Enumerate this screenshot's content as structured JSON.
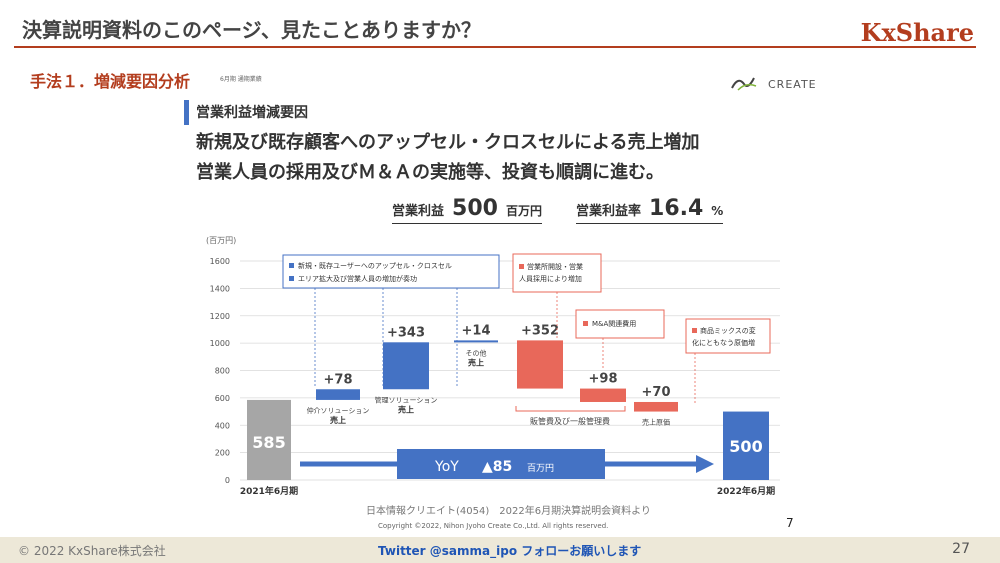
{
  "slide": {
    "title": "決算説明資料のこのページ、見たことありますか？",
    "brand": "KxShare",
    "section": "手法１．増減要因分析",
    "section_small": "6月期 通期業績",
    "logo_text": "CREATE"
  },
  "content": {
    "subheading": "営業利益増減要因",
    "headline1": "新規及び既存顧客へのアップセル・クロスセルによる売上増加",
    "headline2": "営業人員の採用及びＭ＆Ａの実施等、投資も順調に進む。",
    "kpi_op_label": "営業利益",
    "kpi_op_value": "500",
    "kpi_op_unit": "百万円",
    "kpi_margin_label": "営業利益率",
    "kpi_margin_value": "16.4",
    "kpi_margin_unit": "%"
  },
  "chart_data": {
    "type": "bar",
    "subtype": "waterfall",
    "unit_label": "(百万円)",
    "ylim": [
      0,
      1600
    ],
    "yticks": [
      0,
      200,
      400,
      600,
      800,
      1000,
      1200,
      1400,
      1600
    ],
    "start": {
      "label": "2021年6月期",
      "value": 585,
      "color": "#a6a6a6"
    },
    "end": {
      "label": "2022年6月期",
      "value": 500,
      "color": "#4472c4"
    },
    "steps": [
      {
        "label1": "仲介ソリューション",
        "label2": "売上",
        "delta": "+78",
        "value": 78,
        "color": "#4472c4"
      },
      {
        "label1": "管理ソリューション",
        "label2": "売上",
        "delta": "+343",
        "value": 343,
        "color": "#4472c4"
      },
      {
        "label1": "その他",
        "label2": "売上",
        "delta": "+14",
        "value": 14,
        "color": "#4472c4"
      },
      {
        "label1": "",
        "label2": "",
        "delta": "+352",
        "value": -352,
        "color": "#e8685a"
      },
      {
        "label1": "",
        "label2": "",
        "delta": "+98",
        "value": -98,
        "color": "#e8685a"
      },
      {
        "label1": "売上原価",
        "label2": "",
        "delta": "+70",
        "value": -70,
        "color": "#e8685a"
      }
    ],
    "group_label_sga": "販管費及び一般管理費",
    "yoy_label": "YoY",
    "yoy_value": "▲85",
    "yoy_unit": "百万円",
    "annotations": {
      "blue_box_line1": "新規・既存ユーザーへのアップセル・クロスセル",
      "blue_box_line2": "エリア拡大及び営業人員の増加が奏功",
      "red_box1_line1": "営業所開設・営業",
      "red_box1_line2": "人員採用により増加",
      "red_box2": "M&A関連費用",
      "red_box3_line1": "商品ミックスの変",
      "red_box3_line2": "化にともなう原価増"
    },
    "colors": {
      "blue": "#4472c4",
      "red": "#e8685a",
      "grey": "#a6a6a6"
    }
  },
  "footer": {
    "source": "日本情報クリエイト(4054)　2022年6月期決算説明会資料より",
    "copyright": "Copyright ©2022, Nihon Jyoho Create Co.,Ltd. All rights reserved.",
    "inner_page": "7",
    "left": "© 2022 KxShare株式会社",
    "middle": "Twitter @samma_ipo フォローお願いします",
    "page_number": "27"
  }
}
